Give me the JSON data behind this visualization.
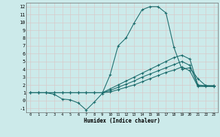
{
  "title": "",
  "xlabel": "Humidex (Indice chaleur)",
  "bg_color": "#cceaea",
  "grid_color": "#b0d4d4",
  "line_color": "#1a6b6b",
  "xlim": [
    -0.5,
    23.5
  ],
  "ylim": [
    -1.5,
    12.5
  ],
  "xticks": [
    0,
    1,
    2,
    3,
    4,
    5,
    6,
    7,
    8,
    9,
    10,
    11,
    12,
    13,
    14,
    15,
    16,
    17,
    18,
    19,
    20,
    21,
    22,
    23
  ],
  "yticks": [
    -1,
    0,
    1,
    2,
    3,
    4,
    5,
    6,
    7,
    8,
    9,
    10,
    11,
    12
  ],
  "line1_x": [
    0,
    1,
    2,
    3,
    4,
    5,
    6,
    7,
    8,
    9,
    10,
    11,
    12,
    13,
    14,
    15,
    16,
    17,
    18,
    19,
    20,
    21,
    22,
    23
  ],
  "line1_y": [
    1,
    1,
    1,
    0.8,
    0.2,
    0.1,
    -0.3,
    -1.2,
    -0.2,
    0.9,
    3.3,
    7,
    8,
    9.9,
    11.6,
    12,
    12,
    11.2,
    6.8,
    4,
    4.2,
    2.8,
    1.9,
    1.8
  ],
  "line2_x": [
    0,
    1,
    2,
    3,
    4,
    5,
    6,
    7,
    8,
    9,
    10,
    11,
    12,
    13,
    14,
    15,
    16,
    17,
    18,
    19,
    20,
    21,
    22,
    23
  ],
  "line2_y": [
    1,
    1,
    1,
    1,
    1,
    1,
    1,
    1,
    1,
    1,
    1.5,
    2.0,
    2.5,
    3.0,
    3.5,
    4.0,
    4.5,
    5.0,
    5.5,
    5.8,
    5.3,
    2.0,
    1.9,
    1.9
  ],
  "line3_x": [
    0,
    1,
    2,
    3,
    4,
    5,
    6,
    7,
    8,
    9,
    10,
    11,
    12,
    13,
    14,
    15,
    16,
    17,
    18,
    19,
    20,
    21,
    22,
    23
  ],
  "line3_y": [
    1,
    1,
    1,
    1,
    1,
    1,
    1,
    1,
    1,
    1,
    1.3,
    1.7,
    2.1,
    2.5,
    3.0,
    3.4,
    3.8,
    4.2,
    4.6,
    5.0,
    4.5,
    1.9,
    1.9,
    1.9
  ],
  "line4_x": [
    0,
    1,
    2,
    3,
    4,
    5,
    6,
    7,
    8,
    9,
    10,
    11,
    12,
    13,
    14,
    15,
    16,
    17,
    18,
    19,
    20,
    21,
    22,
    23
  ],
  "line4_y": [
    1,
    1,
    1,
    1,
    1,
    1,
    1,
    1,
    1,
    1,
    1.1,
    1.4,
    1.7,
    2.0,
    2.4,
    2.8,
    3.2,
    3.6,
    3.9,
    4.3,
    3.8,
    1.8,
    1.8,
    1.8
  ]
}
